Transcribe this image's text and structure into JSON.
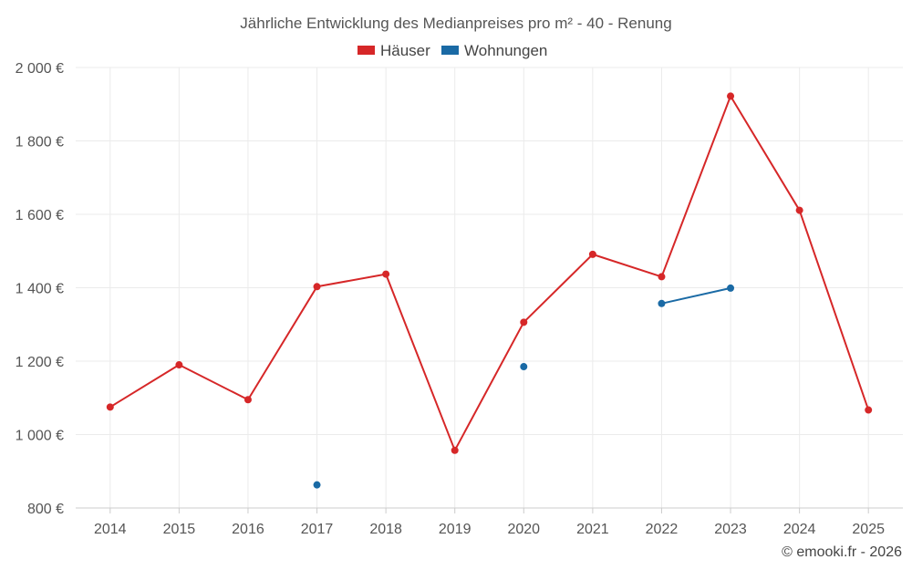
{
  "chart_data": {
    "type": "line",
    "title": "Jährliche Entwicklung des Medianpreises pro m² - 40 - Renung",
    "categories": [
      "2014",
      "2015",
      "2016",
      "2017",
      "2018",
      "2019",
      "2020",
      "2021",
      "2022",
      "2023",
      "2024",
      "2025"
    ],
    "series": [
      {
        "name": "Häuser",
        "color": "#d62728",
        "values": [
          1075,
          1190,
          1095,
          1403,
          1437,
          957,
          1306,
          1491,
          1430,
          1922,
          1611,
          1067
        ]
      },
      {
        "name": "Wohnungen",
        "color": "#1a6aa5",
        "values": [
          null,
          null,
          null,
          863,
          null,
          null,
          1185,
          null,
          1357,
          1399,
          null,
          null
        ]
      }
    ],
    "y_ticks": [
      "800 €",
      "1 000 €",
      "1 200 €",
      "1 400 €",
      "1 600 €",
      "1 800 €",
      "2 000 €"
    ],
    "ylim": [
      800,
      2000
    ],
    "xlabel": "",
    "ylabel": "",
    "legend_position": "top-center",
    "grid": true
  },
  "credit": "© emooki.fr - 2026"
}
